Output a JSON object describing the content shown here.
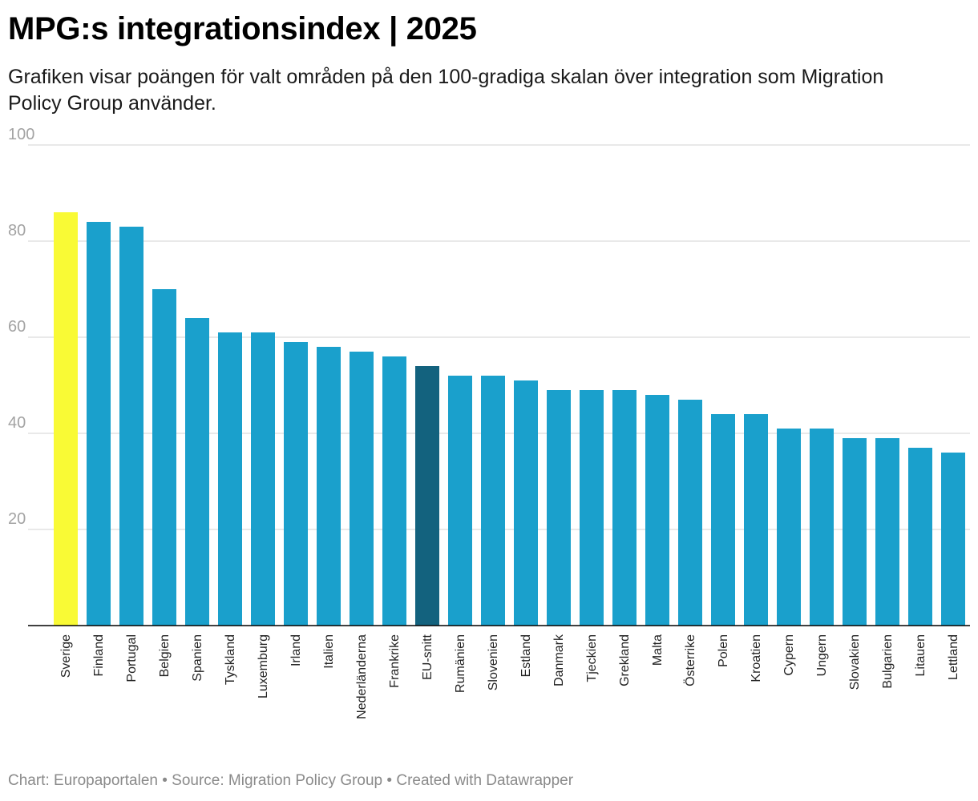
{
  "header": {
    "title": "MPG:s integrationsindex | 2025",
    "subtitle": "Grafiken visar poängen för valt områden på den 100-gradiga skalan över integration som Migration Policy Group använder."
  },
  "footer": {
    "chart_by": "Chart: Europaportalen",
    "separator": "•",
    "source": "Source: Migration Policy Group",
    "created_with": "Created with Datawrapper"
  },
  "colors": {
    "default_bar": "#1aa0cc",
    "highlight_bar": "#f9fa35",
    "average_bar": "#13627e",
    "gridline": "#e2e2e2",
    "baseline": "#000000"
  },
  "chart_data": {
    "type": "bar",
    "title": "MPG:s integrationsindex | 2025",
    "xlabel": "",
    "ylabel": "",
    "ylim": [
      0,
      100
    ],
    "yticks": [
      20,
      40,
      60,
      80,
      100
    ],
    "grid": true,
    "categories": [
      "Sverige",
      "Finland",
      "Portugal",
      "Belgien",
      "Spanien",
      "Tyskland",
      "Luxemburg",
      "Irland",
      "Italien",
      "Nederländerna",
      "Frankrike",
      "EU-snitt",
      "Rumänien",
      "Slovenien",
      "Estland",
      "Danmark",
      "Tjeckien",
      "Grekland",
      "Malta",
      "Österrike",
      "Polen",
      "Kroatien",
      "Cypern",
      "Ungern",
      "Slovakien",
      "Bulgarien",
      "Litauen",
      "Lettland"
    ],
    "values": [
      86,
      84,
      83,
      70,
      64,
      61,
      61,
      59,
      58,
      57,
      56,
      54,
      52,
      52,
      51,
      49,
      49,
      49,
      48,
      47,
      44,
      44,
      41,
      41,
      39,
      39,
      37,
      36
    ],
    "highlight": "Sverige",
    "average": "EU-snitt"
  }
}
